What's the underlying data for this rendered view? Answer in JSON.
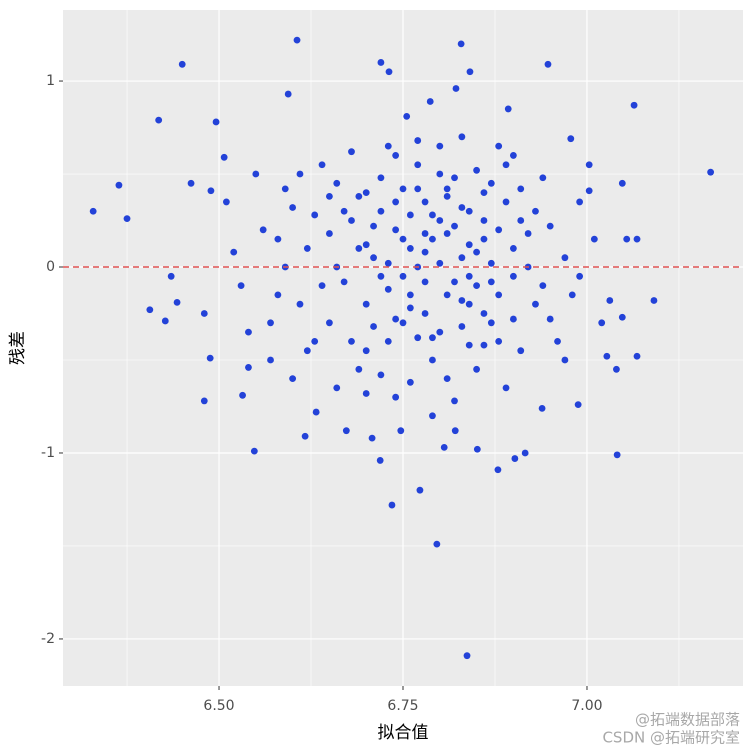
{
  "chart_data": {
    "type": "scatter",
    "x_label": "拟合值",
    "y_label": "残差",
    "color": "#2342d8",
    "hline": {
      "value": 0,
      "color": "#e05252"
    },
    "xlim": [
      6.288,
      7.212
    ],
    "ylim": [
      -2.253,
      1.382
    ],
    "xticks": [
      {
        "value": 6.5,
        "label": "6.50"
      },
      {
        "value": 6.75,
        "label": "6.75"
      },
      {
        "value": 7.0,
        "label": "7.00"
      }
    ],
    "yticks": [
      1,
      0,
      -1,
      -2
    ],
    "minor_xticks": [
      6.375,
      6.625,
      6.875,
      7.125
    ],
    "minor_yticks": [
      0.5,
      -0.5,
      -1.5
    ],
    "grid": true,
    "watermark": [
      "@拓端数据部落",
      "CSDN @拓端研究室"
    ],
    "x": [
      6.329,
      6.364,
      6.375,
      6.406,
      6.418,
      6.427,
      6.45,
      6.606,
      6.594,
      6.496,
      6.72,
      6.731,
      6.829,
      6.841,
      6.947,
      7.064,
      7.168,
      6.837,
      6.796,
      6.773,
      6.735,
      6.719,
      6.548,
      6.48,
      7.041,
      6.879,
      6.902,
      6.916,
      6.851,
      6.617,
      6.988,
      7.091,
      7.068,
      7.054,
      7.068,
      7.048,
      7.003,
      7.003,
      6.978,
      6.893,
      6.822,
      6.787,
      6.755,
      6.507,
      6.462,
      6.489,
      6.435,
      6.443,
      6.488,
      6.54,
      6.532,
      6.632,
      6.673,
      6.708,
      6.806,
      6.821,
      6.747,
      6.939,
      7.027,
      7.048,
      7.031,
      6.7,
      6.75,
      6.82,
      6.88,
      6.78,
      6.65,
      6.92,
      6.84,
      6.72,
      6.8,
      6.68,
      6.76,
      6.86,
      6.9,
      6.74,
      6.62,
      6.95,
      6.81,
      6.7,
      6.85,
      6.6,
      6.79,
      6.83,
      6.93,
      6.77,
      6.66,
      6.89,
      6.73,
      6.87,
      6.71,
      6.58,
      6.64,
      6.8,
      6.91,
      6.76,
      6.69,
      6.97,
      6.84,
      6.74,
      6.82,
      6.56,
      6.67,
      6.78,
      6.94,
      6.86,
      6.72,
      6.99,
      6.81,
      6.63,
      6.88,
      6.54,
      6.61,
      6.75,
      6.9,
      6.83,
      6.7,
      6.96,
      6.79,
      6.85,
      6.77,
      6.52,
      6.59,
      6.74,
      6.87,
      6.8,
      6.68,
      6.93,
      6.82,
      6.89,
      6.76,
      6.57,
      6.65,
      6.73,
      6.84,
      6.91,
      6.71,
      6.98,
      6.78,
      6.86,
      6.63,
      6.55,
      6.69,
      6.77,
      6.88,
      6.81,
      6.66,
      7.02,
      6.83,
      6.79,
      6.74,
      6.53,
      6.6,
      6.72,
      6.85,
      6.92,
      6.75,
      6.95,
      6.8,
      6.87,
      6.7,
      6.62,
      6.67,
      6.78,
      6.9,
      6.83,
      6.73,
      7.01,
      6.86,
      6.76,
      6.81,
      6.59,
      6.64,
      6.71,
      6.89,
      6.82,
      6.77,
      6.94,
      6.84,
      6.79,
      6.68,
      6.51,
      6.58,
      6.74,
      6.86,
      6.8,
      6.69,
      6.97,
      6.88,
      6.72,
      6.85,
      6.66,
      6.61,
      6.76,
      6.91,
      6.83,
      6.73,
      7.04,
      6.78,
      6.87,
      6.7,
      6.48,
      6.57,
      6.75,
      6.84,
      6.81,
      6.65,
      6.99,
      6.9,
      6.77,
      6.79
    ],
    "values": [
      0.3,
      0.44,
      0.26,
      -0.23,
      0.79,
      -0.29,
      1.09,
      1.22,
      0.93,
      0.78,
      1.1,
      1.05,
      1.2,
      1.05,
      1.09,
      0.87,
      0.51,
      -2.09,
      -1.49,
      -1.2,
      -1.28,
      -1.04,
      -0.99,
      -0.72,
      -1.01,
      -1.09,
      -1.03,
      -1.0,
      -0.98,
      -0.91,
      -0.74,
      -0.18,
      -0.48,
      0.15,
      0.15,
      0.45,
      0.41,
      0.55,
      0.69,
      0.85,
      0.96,
      0.89,
      0.81,
      0.59,
      0.45,
      0.41,
      -0.05,
      -0.19,
      -0.49,
      -0.54,
      -0.69,
      -0.78,
      -0.88,
      -0.92,
      -0.97,
      -0.88,
      -0.88,
      -0.76,
      -0.48,
      -0.27,
      -0.18,
      0.12,
      -0.05,
      0.22,
      -0.15,
      0.35,
      -0.3,
      0.18,
      -0.42,
      0.48,
      0.02,
      0.25,
      -0.22,
      0.4,
      -0.05,
      0.6,
      0.1,
      -0.28,
      -0.6,
      -0.45,
      0.08,
      0.32,
      0.15,
      -0.18,
      0.3,
      -0.38,
      0.45,
      0.55,
      -0.12,
      -0.3,
      0.05,
      -0.15,
      0.55,
      0.5,
      -0.45,
      0.28,
      -0.55,
      0.05,
      0.12,
      -0.7,
      -0.08,
      0.2,
      -0.08,
      -0.25,
      -0.1,
      0.25,
      0.3,
      0.35,
      0.38,
      -0.4,
      0.65,
      -0.35,
      -0.2,
      0.42,
      0.1,
      0.7,
      -0.2,
      -0.4,
      -0.5,
      -0.55,
      0.0,
      0.08,
      0.42,
      0.2,
      0.02,
      -0.35,
      0.62,
      -0.2,
      0.48,
      -0.65,
      -0.62,
      -0.5,
      0.18,
      0.02,
      0.3,
      0.42,
      -0.32,
      -0.15,
      0.08,
      -0.25,
      0.28,
      0.5,
      0.38,
      0.55,
      0.2,
      -0.15,
      -0.65,
      -0.3,
      -0.32,
      0.28,
      -0.28,
      -0.1,
      -0.6,
      -0.05,
      -0.1,
      0.0,
      0.15,
      0.22,
      0.65,
      0.45,
      0.4,
      -0.45,
      0.3,
      -0.08,
      -0.28,
      0.05,
      0.65,
      0.15,
      -0.42,
      -0.15,
      0.18,
      0.0,
      -0.1,
      0.22,
      0.35,
      -0.72,
      0.42,
      0.48,
      -0.2,
      -0.8,
      -0.4,
      0.35,
      0.15,
      0.35,
      0.15,
      0.25,
      0.1,
      -0.5,
      -0.4,
      -0.58,
      0.52,
      0.0,
      0.5,
      0.1,
      0.25,
      0.32,
      -0.4,
      -0.55,
      0.18,
      -0.08,
      -0.68,
      -0.25,
      -0.3,
      -0.3,
      -0.05,
      0.42,
      0.38,
      -0.05,
      0.6,
      0.68,
      -0.38
    ]
  }
}
